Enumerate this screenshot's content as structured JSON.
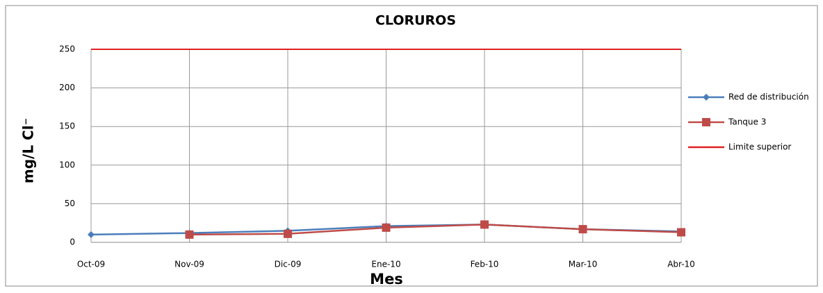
{
  "chart_data": {
    "type": "line",
    "title": "CLORUROS",
    "x_label": "Mes",
    "y_label": "mg/L Cl⁻",
    "categories": [
      "Oct-09",
      "Nov-09",
      "Dic-09",
      "Ene-10",
      "Feb-10",
      "Mar-10",
      "Abr-10"
    ],
    "series": [
      {
        "name": "Red de distribución",
        "color": "#4a7ebb",
        "marker": "diamond",
        "values": [
          10,
          12,
          15,
          21,
          23,
          17,
          14
        ]
      },
      {
        "name": "Tanque 3",
        "color": "#be4b48",
        "marker": "square",
        "values": [
          null,
          10,
          11,
          19,
          23,
          17,
          13
        ]
      },
      {
        "name": "Limite superior",
        "color": "#e02020",
        "marker": "none",
        "values": [
          250,
          250,
          250,
          250,
          250,
          250,
          250
        ]
      }
    ],
    "ylim": [
      0,
      250
    ],
    "yticks": [
      0,
      50,
      100,
      150,
      200,
      250
    ],
    "grid": true,
    "legend": "right"
  }
}
